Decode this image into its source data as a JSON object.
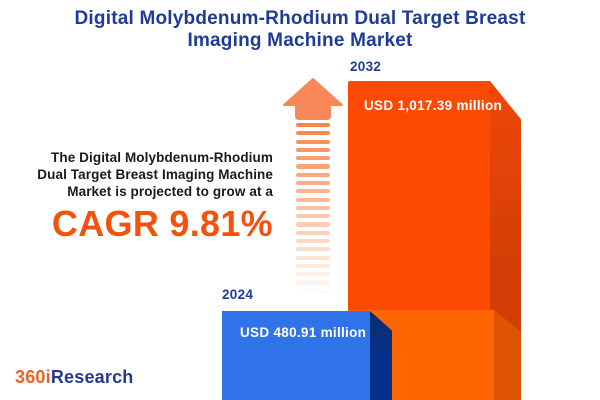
{
  "brand": {
    "logo_prefix": "360i",
    "logo_suffix": "Research"
  },
  "title": {
    "line1": "Digital Molybdenum-Rhodium Dual Target Breast",
    "line2": "Imaging Machine Market"
  },
  "projection": {
    "line1": "The Digital Molybdenum-Rhodium",
    "line2": "Dual Target Breast Imaging Machine",
    "line3": "Market is projected to grow at a",
    "cagr_label": "CAGR 9.81%"
  },
  "arrow": {
    "stripe_count": 21,
    "head_color": "#F8875A",
    "stripe_color": "#F6864C"
  },
  "chart_data": {
    "type": "bar",
    "title": "Digital Molybdenum-Rhodium Dual Target Breast Imaging Machine Market",
    "categories": [
      "2024",
      "2032"
    ],
    "values": [
      480.91,
      1017.39
    ],
    "unit": "USD million",
    "value_labels": [
      "USD 480.91 million",
      "USD 1,017.39 million"
    ],
    "cagr_percent": 9.81,
    "legend": "none",
    "axes": "none",
    "bar_colors": {
      "2024_front": "#3073E8",
      "2024_side": "#05318C",
      "2032_front": "#FD4A03",
      "2032_side": "#D23E05",
      "2032_lower_front": "#FF6501",
      "2032_lower_side": "#DC5404"
    }
  },
  "colors": {
    "background": "#FFFFFF",
    "title_navy": "#1E3C96",
    "text_black": "#1A1A1A",
    "cagr_orange": "#F3520C",
    "logo_orange": "#F26322",
    "logo_navy": "#24388E"
  }
}
